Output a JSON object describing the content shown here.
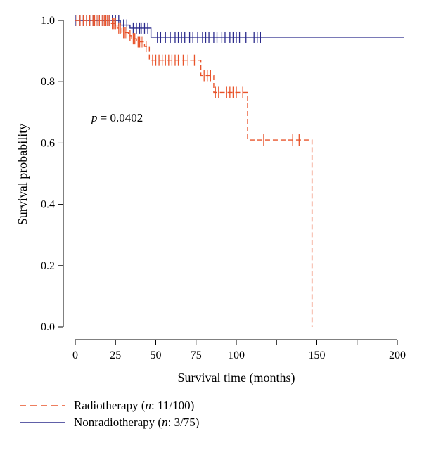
{
  "chart_data": {
    "type": "line",
    "subtype": "kaplan-meier",
    "xlabel": "Survival time (months)",
    "ylabel": "Survival probability",
    "xlim": [
      0,
      200
    ],
    "ylim": [
      0,
      1.0
    ],
    "x_ticks": [
      0,
      25,
      50,
      75,
      100,
      150,
      200
    ],
    "x_tick_labels": [
      "0",
      "25",
      "50",
      "75",
      "100",
      "150",
      "200"
    ],
    "x_minor_ticks": [
      125,
      175
    ],
    "y_ticks": [
      0.0,
      0.2,
      0.4,
      0.6,
      0.8,
      1.0
    ],
    "y_tick_labels": [
      "0.0",
      "0.2",
      "0.4",
      "0.6",
      "0.8",
      "1.0"
    ],
    "grid": false,
    "legend_position": "bottom-left",
    "annotation": {
      "italic": "p",
      "text": " = 0.0402",
      "x": 10,
      "y": 0.67
    },
    "series": [
      {
        "key": "radiotherapy",
        "name": "Radiotherapy",
        "legend_italic": "n",
        "legend_rest": ": 11/100)",
        "legend_prefix": "Radiotherapy (",
        "color": "#e8532a",
        "dash": "dashed",
        "steps": [
          [
            0,
            1.0
          ],
          [
            22,
            0.99
          ],
          [
            26,
            0.975
          ],
          [
            29,
            0.96
          ],
          [
            33,
            0.95
          ],
          [
            35,
            0.94
          ],
          [
            38,
            0.93
          ],
          [
            43,
            0.915
          ],
          [
            46,
            0.87
          ],
          [
            78,
            0.82
          ],
          [
            86,
            0.765
          ],
          [
            107,
            0.61
          ],
          [
            147,
            0.0
          ]
        ],
        "end_x": 147,
        "censored": [
          [
            1,
            1.0
          ],
          [
            3,
            1.0
          ],
          [
            5,
            1.0
          ],
          [
            7,
            1.0
          ],
          [
            9,
            1.0
          ],
          [
            11,
            1.0
          ],
          [
            12,
            1.0
          ],
          [
            13,
            1.0
          ],
          [
            14,
            1.0
          ],
          [
            15,
            1.0
          ],
          [
            16,
            1.0
          ],
          [
            17,
            1.0
          ],
          [
            18,
            1.0
          ],
          [
            19,
            1.0
          ],
          [
            20,
            1.0
          ],
          [
            21,
            1.0
          ],
          [
            23,
            0.99
          ],
          [
            24,
            0.99
          ],
          [
            25,
            0.99
          ],
          [
            27,
            0.975
          ],
          [
            28,
            0.975
          ],
          [
            30,
            0.96
          ],
          [
            31,
            0.96
          ],
          [
            32,
            0.96
          ],
          [
            34,
            0.95
          ],
          [
            36,
            0.94
          ],
          [
            37,
            0.94
          ],
          [
            39,
            0.93
          ],
          [
            40,
            0.93
          ],
          [
            41,
            0.93
          ],
          [
            42,
            0.93
          ],
          [
            44,
            0.915
          ],
          [
            48,
            0.87
          ],
          [
            50,
            0.87
          ],
          [
            52,
            0.87
          ],
          [
            54,
            0.87
          ],
          [
            56,
            0.87
          ],
          [
            58,
            0.87
          ],
          [
            60,
            0.87
          ],
          [
            62,
            0.87
          ],
          [
            64,
            0.87
          ],
          [
            67,
            0.87
          ],
          [
            70,
            0.87
          ],
          [
            74,
            0.87
          ],
          [
            80,
            0.82
          ],
          [
            82,
            0.82
          ],
          [
            84,
            0.82
          ],
          [
            87,
            0.765
          ],
          [
            89,
            0.765
          ],
          [
            94,
            0.765
          ],
          [
            96,
            0.765
          ],
          [
            98,
            0.765
          ],
          [
            100,
            0.765
          ],
          [
            104,
            0.765
          ],
          [
            117,
            0.61
          ],
          [
            135,
            0.61
          ],
          [
            139,
            0.61
          ]
        ]
      },
      {
        "key": "nonradiotherapy",
        "name": "Nonradiotherapy",
        "legend_italic": "n",
        "legend_rest": ": 3/75)",
        "legend_prefix": "Nonradiotherapy (",
        "color": "#2b2b8c",
        "dash": "solid",
        "steps": [
          [
            0,
            1.0
          ],
          [
            28,
            0.985
          ],
          [
            34,
            0.975
          ],
          [
            47,
            0.945
          ]
        ],
        "end_x": 205,
        "censored": [
          [
            0,
            1.0
          ],
          [
            3,
            1.0
          ],
          [
            5,
            1.0
          ],
          [
            7,
            1.0
          ],
          [
            9,
            1.0
          ],
          [
            11,
            1.0
          ],
          [
            13,
            1.0
          ],
          [
            15,
            1.0
          ],
          [
            17,
            1.0
          ],
          [
            19,
            1.0
          ],
          [
            21,
            1.0
          ],
          [
            23,
            1.0
          ],
          [
            25,
            1.0
          ],
          [
            27,
            1.0
          ],
          [
            30,
            0.985
          ],
          [
            32,
            0.985
          ],
          [
            36,
            0.975
          ],
          [
            38,
            0.975
          ],
          [
            40,
            0.975
          ],
          [
            41,
            0.975
          ],
          [
            43,
            0.975
          ],
          [
            45,
            0.975
          ],
          [
            51,
            0.945
          ],
          [
            53,
            0.945
          ],
          [
            56,
            0.945
          ],
          [
            59,
            0.945
          ],
          [
            62,
            0.945
          ],
          [
            64,
            0.945
          ],
          [
            66,
            0.945
          ],
          [
            68,
            0.945
          ],
          [
            71,
            0.945
          ],
          [
            73,
            0.945
          ],
          [
            76,
            0.945
          ],
          [
            79,
            0.945
          ],
          [
            81,
            0.945
          ],
          [
            83,
            0.945
          ],
          [
            86,
            0.945
          ],
          [
            88,
            0.945
          ],
          [
            91,
            0.945
          ],
          [
            93,
            0.945
          ],
          [
            96,
            0.945
          ],
          [
            98,
            0.945
          ],
          [
            100,
            0.945
          ],
          [
            102,
            0.945
          ],
          [
            106,
            0.945
          ],
          [
            111,
            0.945
          ],
          [
            113,
            0.945
          ],
          [
            115,
            0.945
          ]
        ]
      }
    ]
  }
}
